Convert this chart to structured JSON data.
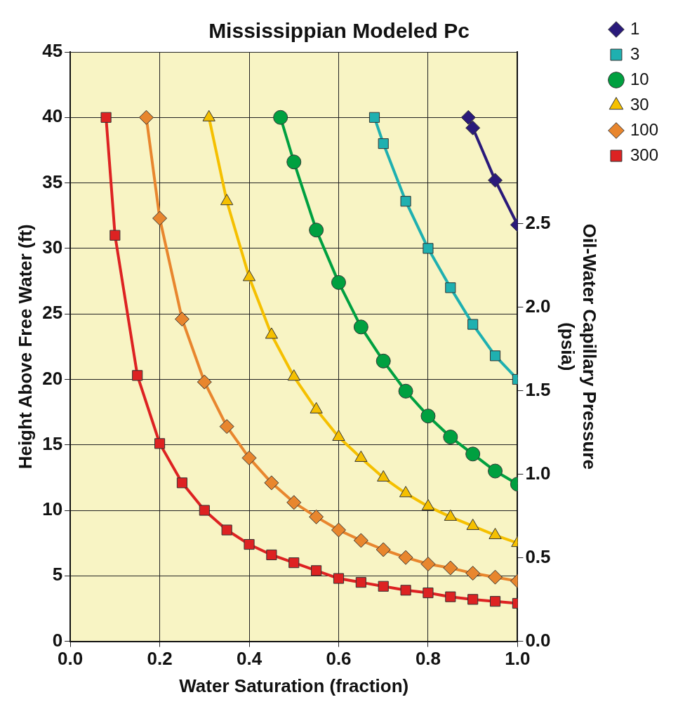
{
  "chart_data": {
    "type": "line",
    "title": "Mississippian Modeled Pc",
    "xlabel": "Water Saturation (fraction)",
    "ylabel": "Height Above Free Water (ft)",
    "y2label": "Oil-Water Capillary Pressure (psia)",
    "xlim": [
      0,
      1
    ],
    "xticks": [
      {
        "value": 0,
        "label": "0.0"
      },
      0.2,
      0.4,
      0.6,
      0.8,
      {
        "value": 1,
        "label": "1.0"
      }
    ],
    "ylim": [
      0,
      45
    ],
    "yticks": [
      0,
      5,
      10,
      15,
      20,
      25,
      30,
      35,
      40,
      45
    ],
    "y2lim": [
      0,
      3.53
    ],
    "y2ticks": [
      {
        "value": 0,
        "label": "0.0"
      },
      0.5,
      {
        "value": 1,
        "label": "1.0"
      },
      1.5,
      {
        "value": 2,
        "label": "2.0"
      },
      2.5
    ],
    "grid": true,
    "legend": "top right",
    "series": [
      {
        "name": "1",
        "color": "#2a1a7a",
        "marker": "diamond",
        "x": [
          0.89,
          0.9,
          0.95,
          1.0
        ],
        "values": [
          40,
          39.2,
          35.2,
          31.8
        ]
      },
      {
        "name": "3",
        "color": "#1fb0b0",
        "marker": "square",
        "x": [
          0.68,
          0.7,
          0.75,
          0.8,
          0.85,
          0.9,
          0.95,
          1.0
        ],
        "values": [
          40,
          38,
          33.6,
          30,
          27,
          24.2,
          21.8,
          20
        ]
      },
      {
        "name": "10",
        "color": "#00a040",
        "marker": "circle",
        "x": [
          0.47,
          0.5,
          0.55,
          0.6,
          0.65,
          0.7,
          0.75,
          0.8,
          0.85,
          0.9,
          0.95,
          1.0
        ],
        "values": [
          40,
          36.6,
          31.4,
          27.4,
          24,
          21.4,
          19.1,
          17.2,
          15.6,
          14.3,
          13,
          12
        ]
      },
      {
        "name": "30",
        "color": "#f5c000",
        "marker": "triangle",
        "x": [
          0.31,
          0.35,
          0.4,
          0.45,
          0.5,
          0.55,
          0.6,
          0.65,
          0.7,
          0.75,
          0.8,
          0.85,
          0.9,
          0.95,
          1.0
        ],
        "values": [
          40,
          33.6,
          27.8,
          23.4,
          20.2,
          17.7,
          15.6,
          14,
          12.5,
          11.3,
          10.3,
          9.5,
          8.8,
          8.1,
          7.5
        ]
      },
      {
        "name": "100",
        "color": "#e8862e",
        "marker": "diamond",
        "x": [
          0.17,
          0.2,
          0.25,
          0.3,
          0.35,
          0.4,
          0.45,
          0.5,
          0.55,
          0.6,
          0.65,
          0.7,
          0.75,
          0.8,
          0.85,
          0.9,
          0.95,
          1.0
        ],
        "values": [
          40,
          32.3,
          24.6,
          19.8,
          16.4,
          14,
          12.1,
          10.6,
          9.5,
          8.5,
          7.7,
          7,
          6.4,
          5.9,
          5.6,
          5.2,
          4.9,
          4.6
        ]
      },
      {
        "name": "300",
        "color": "#dd2222",
        "marker": "square",
        "x": [
          0.08,
          0.1,
          0.15,
          0.2,
          0.25,
          0.3,
          0.35,
          0.4,
          0.45,
          0.5,
          0.55,
          0.6,
          0.65,
          0.7,
          0.75,
          0.8,
          0.85,
          0.9,
          0.95,
          1.0
        ],
        "values": [
          40,
          31,
          20.3,
          15.1,
          12.1,
          10,
          8.5,
          7.4,
          6.6,
          6,
          5.4,
          4.8,
          4.5,
          4.2,
          3.9,
          3.7,
          3.4,
          3.2,
          3.05,
          2.9
        ]
      }
    ]
  }
}
